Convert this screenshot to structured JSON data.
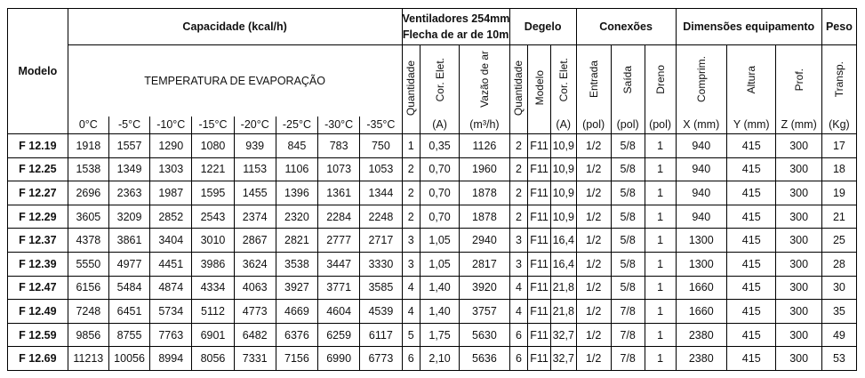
{
  "headers": {
    "modelo": "Modelo",
    "capacidade": "Capacidade (kcal/h)",
    "temperatura": "TEMPERATURA DE EVAPORAÇÃO",
    "ventiladores_line1": "Ventiladores 254mm",
    "ventiladores_line2": "Flecha de ar de 10m",
    "degelo": "Degelo",
    "conexoes": "Conexões",
    "dimensoes": "Dimensões equipamento",
    "peso": "Peso",
    "temps": [
      "0°C",
      "-5°C",
      "-10°C",
      "-15°C",
      "-20°C",
      "-25°C",
      "-30°C",
      "-35°C"
    ],
    "sub_labels": {
      "quantidade": "Quantidade",
      "cor_elet": "Cor. Elet.",
      "vazao_ar": "Vazão de ar",
      "quantidade2": "Quantidade",
      "modelo": "Modelo",
      "cor_elet2": "Cor. Elet.",
      "entrada": "Entrada",
      "saida": "Saída",
      "dreno": "Dreno",
      "comprim": "Comprim.",
      "altura": "Altura",
      "prof": "Prof.",
      "transp": "Transp."
    },
    "units": {
      "cor_elet": "(A)",
      "vazao_ar": "(m³/h)",
      "cor_elet2": "(A)",
      "entrada": "(pol)",
      "saida": "(pol)",
      "dreno": "(pol)",
      "comprim": "X (mm)",
      "altura": "Y (mm)",
      "prof": "Z (mm)",
      "transp": "(Kg)"
    }
  },
  "rows": [
    {
      "model": "F 12.19",
      "cap": [
        "1918",
        "1557",
        "1290",
        "1080",
        "939",
        "845",
        "783",
        "750"
      ],
      "vent_qty": "1",
      "vent_cor": "0,35",
      "vazao": "1126",
      "deg_qty": "2",
      "deg_model": "F11",
      "deg_cor": "10,9",
      "entrada": "1/2",
      "saida": "5/8",
      "dreno": "1",
      "x": "940",
      "y": "415",
      "z": "300",
      "peso": "17"
    },
    {
      "model": "F 12.25",
      "cap": [
        "1538",
        "1349",
        "1303",
        "1221",
        "1153",
        "1106",
        "1073",
        "1053"
      ],
      "vent_qty": "2",
      "vent_cor": "0,70",
      "vazao": "1960",
      "deg_qty": "2",
      "deg_model": "F11",
      "deg_cor": "10,9",
      "entrada": "1/2",
      "saida": "5/8",
      "dreno": "1",
      "x": "940",
      "y": "415",
      "z": "300",
      "peso": "18"
    },
    {
      "model": "F 12.27",
      "cap": [
        "2696",
        "2363",
        "1987",
        "1595",
        "1455",
        "1396",
        "1361",
        "1344"
      ],
      "vent_qty": "2",
      "vent_cor": "0,70",
      "vazao": "1878",
      "deg_qty": "2",
      "deg_model": "F11",
      "deg_cor": "10,9",
      "entrada": "1/2",
      "saida": "5/8",
      "dreno": "1",
      "x": "940",
      "y": "415",
      "z": "300",
      "peso": "19"
    },
    {
      "model": "F 12.29",
      "cap": [
        "3605",
        "3209",
        "2852",
        "2543",
        "2374",
        "2320",
        "2284",
        "2248"
      ],
      "vent_qty": "2",
      "vent_cor": "0,70",
      "vazao": "1878",
      "deg_qty": "2",
      "deg_model": "F11",
      "deg_cor": "10,9",
      "entrada": "1/2",
      "saida": "5/8",
      "dreno": "1",
      "x": "940",
      "y": "415",
      "z": "300",
      "peso": "21"
    },
    {
      "model": "F 12.37",
      "cap": [
        "4378",
        "3861",
        "3404",
        "3010",
        "2867",
        "2821",
        "2777",
        "2717"
      ],
      "vent_qty": "3",
      "vent_cor": "1,05",
      "vazao": "2940",
      "deg_qty": "3",
      "deg_model": "F11",
      "deg_cor": "16,4",
      "entrada": "1/2",
      "saida": "5/8",
      "dreno": "1",
      "x": "1300",
      "y": "415",
      "z": "300",
      "peso": "25"
    },
    {
      "model": "F 12.39",
      "cap": [
        "5550",
        "4977",
        "4451",
        "3986",
        "3624",
        "3538",
        "3447",
        "3330"
      ],
      "vent_qty": "3",
      "vent_cor": "1,05",
      "vazao": "2817",
      "deg_qty": "3",
      "deg_model": "F11",
      "deg_cor": "16,4",
      "entrada": "1/2",
      "saida": "5/8",
      "dreno": "1",
      "x": "1300",
      "y": "415",
      "z": "300",
      "peso": "28"
    },
    {
      "model": "F 12.47",
      "cap": [
        "6156",
        "5484",
        "4874",
        "4334",
        "4063",
        "3927",
        "3771",
        "3585"
      ],
      "vent_qty": "4",
      "vent_cor": "1,40",
      "vazao": "3920",
      "deg_qty": "4",
      "deg_model": "F11",
      "deg_cor": "21,8",
      "entrada": "1/2",
      "saida": "5/8",
      "dreno": "1",
      "x": "1660",
      "y": "415",
      "z": "300",
      "peso": "30"
    },
    {
      "model": "F 12.49",
      "cap": [
        "7248",
        "6451",
        "5734",
        "5112",
        "4773",
        "4669",
        "4604",
        "4539"
      ],
      "vent_qty": "4",
      "vent_cor": "1,40",
      "vazao": "3757",
      "deg_qty": "4",
      "deg_model": "F11",
      "deg_cor": "21,8",
      "entrada": "1/2",
      "saida": "7/8",
      "dreno": "1",
      "x": "1660",
      "y": "415",
      "z": "300",
      "peso": "35"
    },
    {
      "model": "F 12.59",
      "cap": [
        "9856",
        "8755",
        "7763",
        "6901",
        "6482",
        "6376",
        "6259",
        "6117"
      ],
      "vent_qty": "5",
      "vent_cor": "1,75",
      "vazao": "5630",
      "deg_qty": "6",
      "deg_model": "F11",
      "deg_cor": "32,7",
      "entrada": "1/2",
      "saida": "7/8",
      "dreno": "1",
      "x": "2380",
      "y": "415",
      "z": "300",
      "peso": "49"
    },
    {
      "model": "F 12.69",
      "cap": [
        "11213",
        "10056",
        "8994",
        "8056",
        "7331",
        "7156",
        "6990",
        "6773"
      ],
      "vent_qty": "6",
      "vent_cor": "2,10",
      "vazao": "5636",
      "deg_qty": "6",
      "deg_model": "F11",
      "deg_cor": "32,7",
      "entrada": "1/2",
      "saida": "7/8",
      "dreno": "1",
      "x": "2380",
      "y": "415",
      "z": "300",
      "peso": "53"
    }
  ]
}
